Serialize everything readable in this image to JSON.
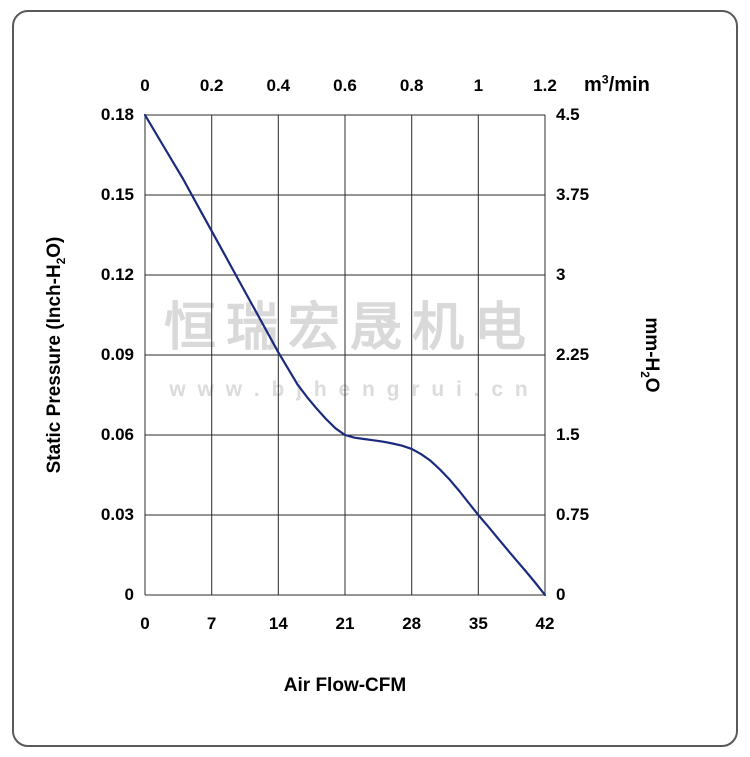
{
  "watermark": {
    "line1": "恒瑞宏晟机电",
    "line2": "w w w . b j h e n g r u i . c n"
  },
  "colors": {
    "curve": "#1a2b7d",
    "grid": "#2b2b2b",
    "frame": "#595959",
    "watermark": "#b9b9b9"
  },
  "chart_data": {
    "type": "line",
    "title": "",
    "grid": true,
    "legend": "none",
    "x_bottom": {
      "label": "Air Flow-CFM",
      "ticks": [
        "0",
        "7",
        "14",
        "21",
        "28",
        "35",
        "42"
      ],
      "range": [
        0,
        42
      ]
    },
    "x_top": {
      "unit_pre": "m",
      "unit_sup": "3",
      "unit_post": "/min",
      "ticks": [
        "0",
        "0.2",
        "0.4",
        "0.6",
        "0.8",
        "1",
        "1.2"
      ],
      "range": [
        0,
        1.2
      ]
    },
    "y_left": {
      "label_pre": "Static Pressure (Inch-H",
      "label_sub": "2",
      "label_post": "O)",
      "ticks": [
        "0.18",
        "0.15",
        "0.12",
        "0.09",
        "0.06",
        "0.03",
        "0"
      ],
      "range": [
        0,
        0.18
      ]
    },
    "y_right": {
      "label_pre": "mm-H",
      "label_sub": "2",
      "label_post": "O",
      "ticks": [
        "4.5",
        "3.75",
        "3",
        "2.25",
        "1.5",
        "0.75",
        "0"
      ],
      "range": [
        0,
        4.5
      ]
    },
    "series": [
      {
        "name": "static-pressure-curve",
        "color": "#1a2b7d",
        "points": [
          [
            0,
            0.18
          ],
          [
            2,
            0.168
          ],
          [
            4,
            0.156
          ],
          [
            6,
            0.143
          ],
          [
            8,
            0.13
          ],
          [
            10,
            0.117
          ],
          [
            12,
            0.104
          ],
          [
            14,
            0.091
          ],
          [
            15,
            0.085
          ],
          [
            16,
            0.079
          ],
          [
            17,
            0.0743
          ],
          [
            18,
            0.07
          ],
          [
            19,
            0.066
          ],
          [
            20,
            0.0625
          ],
          [
            21,
            0.06
          ],
          [
            22,
            0.059
          ],
          [
            23,
            0.0585
          ],
          [
            24,
            0.058
          ],
          [
            25,
            0.0575
          ],
          [
            26,
            0.0568
          ],
          [
            27,
            0.056
          ],
          [
            28,
            0.0548
          ],
          [
            29,
            0.0528
          ],
          [
            30,
            0.0503
          ],
          [
            31,
            0.047
          ],
          [
            32,
            0.0432
          ],
          [
            33,
            0.039
          ],
          [
            34,
            0.0345
          ],
          [
            35,
            0.03
          ],
          [
            36,
            0.0258
          ],
          [
            37,
            0.0215
          ],
          [
            38,
            0.0172
          ],
          [
            39,
            0.013
          ],
          [
            40,
            0.0088
          ],
          [
            41,
            0.0045
          ],
          [
            42,
            0.0
          ]
        ]
      }
    ]
  }
}
